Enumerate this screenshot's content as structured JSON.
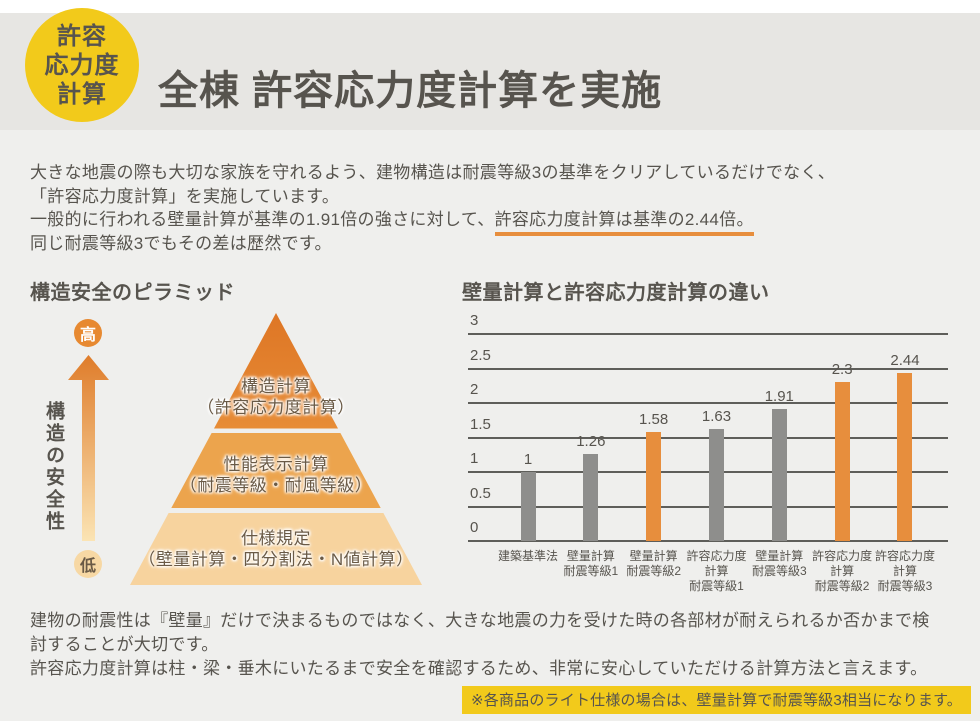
{
  "badge": {
    "line1": "許容",
    "line2": "応力度",
    "line3": "計算"
  },
  "header": {
    "title": "全棟 許容応力度計算を実施"
  },
  "intro": {
    "line1": "大きな地震の際も大切な家族を守れるよう、建物構造は耐震等級3の基準をクリアしているだけでなく、",
    "line2": "「許容応力度計算」を実施しています。",
    "line3_prefix": "一般的に行われる壁量計算が基準の1.91倍の強さに対して、",
    "line3_highlight": "許容応力度計算は基準の2.44倍。",
    "line4": "同じ耐震等級3でもその差は歴然です。"
  },
  "pyramid": {
    "title": "構造安全のピラミッド",
    "high_label": "高",
    "low_label": "低",
    "axis_label": "構造の安全性",
    "tiers": [
      {
        "line1": "構造計算",
        "line2": "（許容応力度計算）"
      },
      {
        "line1": "性能表示計算",
        "line2": "（耐震等級・耐風等級）"
      },
      {
        "line1": "仕様規定",
        "line2": "（壁量計算・四分割法・N値計算）"
      }
    ]
  },
  "chart_data": {
    "type": "bar",
    "title": "壁量計算と許容応力度計算の違い",
    "xlabel": "",
    "ylabel": "",
    "ylim": [
      0,
      3
    ],
    "yticks": [
      "3",
      "2.5",
      "2",
      "1.5",
      "1",
      "0.5",
      "0"
    ],
    "grid": "horizontal",
    "legend": "none",
    "categories": [
      "建築基準法",
      "壁量計算\n耐震等級1",
      "壁量計算\n耐震等級2",
      "許容応力度\n計算\n耐震等級1",
      "壁量計算\n耐震等級3",
      "許容応力度\n計算\n耐震等級2",
      "許容応力度\n計算\n耐震等級3"
    ],
    "values": [
      1,
      1.26,
      1.58,
      1.63,
      1.91,
      2.3,
      2.44
    ],
    "value_labels": [
      "1",
      "1.26",
      "1.58",
      "1.63",
      "1.91",
      "2.3",
      "2.44"
    ],
    "bar_colors": [
      "gray",
      "gray",
      "orange",
      "gray",
      "gray",
      "orange",
      "orange"
    ],
    "colors": {
      "gray": "#8e8e8c",
      "orange": "#e78e3d",
      "accent_underline": "#e78e3d",
      "badge_yellow": "#f2ca1b"
    }
  },
  "outro": {
    "line1": "建物の耐震性は『壁量』だけで決まるものではなく、大きな地震の力を受けた時の各部材が耐えられるか否かまで検",
    "line2": "討することが大切です。",
    "line3": "許容応力度計算は柱・梁・垂木にいたるまで安全を確認するため、非常に安心していただける計算方法と言えます。"
  },
  "note": {
    "text": "※各商品のライト仕様の場合は、壁量計算で耐震等級3相当になります。"
  }
}
